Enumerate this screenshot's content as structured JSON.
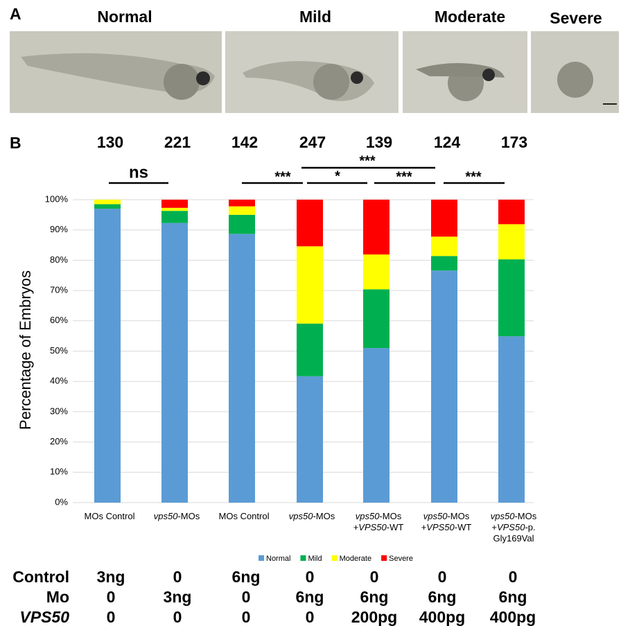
{
  "panel_a": {
    "label": "A",
    "images": [
      "Normal",
      "Mild",
      "Moderate",
      "Severe"
    ]
  },
  "chart_data": {
    "type": "stacked_bar",
    "panel_label": "B",
    "y_label": "Percentage of Embryos",
    "categories": [
      [
        "MOs Control"
      ],
      [
        "vps50-MOs"
      ],
      [
        "MOs Control"
      ],
      [
        "vps50-MOs"
      ],
      [
        "vps50-MOs",
        "+VPS50-WT"
      ],
      [
        "vps50-MOs",
        "+VPS50-WT"
      ],
      [
        "vps50-MOs",
        "+VPS50-p.",
        "Gly169Val"
      ]
    ],
    "counts": [
      130,
      221,
      142,
      247,
      139,
      124,
      173
    ],
    "significance": [
      "ns",
      "***",
      "***",
      "*",
      "***",
      "***"
    ],
    "series": [
      {
        "name": "Normal",
        "color": "#5b9bd5",
        "values": [
          97,
          92.3,
          88.7,
          41.7,
          51,
          76.6,
          54.9
        ]
      },
      {
        "name": "Mild",
        "color": "#00b050",
        "values": [
          1.5,
          4,
          6.3,
          17.4,
          19.4,
          4.8,
          25.4
        ]
      },
      {
        "name": "Moderate",
        "color": "#ffff00",
        "values": [
          1.5,
          1,
          2.8,
          25.5,
          11.5,
          6.4,
          11.6
        ]
      },
      {
        "name": "Severe",
        "color": "#ff0000",
        "values": [
          0,
          2.7,
          2.2,
          15.4,
          18.1,
          12.2,
          8.1
        ]
      }
    ],
    "ylim": [
      0,
      100
    ],
    "yticks": [
      {
        "value": 0,
        "label": "0%"
      },
      {
        "value": 10,
        "label": "10%"
      },
      {
        "value": 20,
        "label": "20%"
      },
      {
        "value": 30,
        "label": "30%"
      },
      {
        "value": 40,
        "label": "40%"
      },
      {
        "value": 50,
        "label": "50%"
      },
      {
        "value": 60,
        "label": "60%"
      },
      {
        "value": 70,
        "label": "70%"
      },
      {
        "value": 80,
        "label": "80%"
      },
      {
        "value": 90,
        "label": "90%"
      },
      {
        "value": 100,
        "label": "100%"
      }
    ],
    "grid": true,
    "legend": "bottom"
  },
  "table": {
    "rows": [
      [
        "Control",
        "3ng",
        "0",
        "6ng",
        "0",
        "0",
        "0",
        "0"
      ],
      [
        "Mo",
        "0",
        "3ng",
        "0",
        "6ng",
        "6ng",
        "6ng",
        "6ng"
      ],
      [
        "VPS50",
        "0",
        "0",
        "0",
        "0",
        "200pg",
        "400pg",
        "400pg"
      ]
    ]
  }
}
